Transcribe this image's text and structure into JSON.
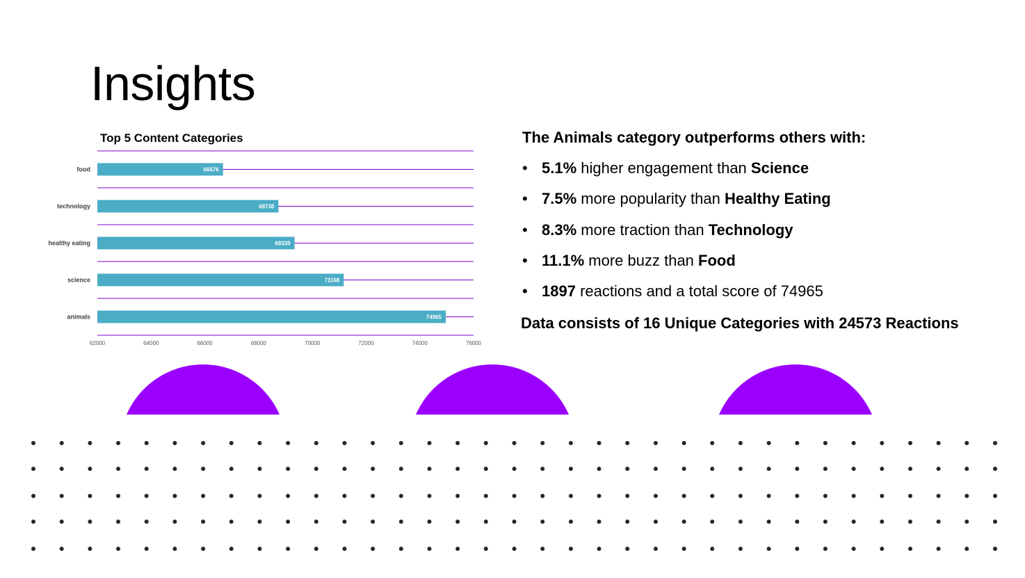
{
  "slide": {
    "title": "Insights"
  },
  "colors": {
    "bar": "#4bacc6",
    "gridline": "#7f00c8",
    "accent": "#9b00ff",
    "dots": "#262626"
  },
  "chart_data": {
    "type": "bar",
    "orientation": "horizontal",
    "title": "Top 5 Content Categories",
    "xlabel": "",
    "ylabel": "",
    "categories": [
      "food",
      "technology",
      "healthy eating",
      "science",
      "animals"
    ],
    "values": [
      66676,
      68738,
      69339,
      71168,
      74965
    ],
    "xlim": [
      62000,
      76000
    ],
    "x_ticks": [
      "62000",
      "64000",
      "66000",
      "68000",
      "70000",
      "72000",
      "74000",
      "76000"
    ],
    "data_labels": true,
    "grid": true,
    "legend": "none"
  },
  "insights": {
    "heading": "The Animals category outperforms others with:",
    "bullets": [
      {
        "value": "5.1%",
        "text": " higher engagement than ",
        "category": "Science"
      },
      {
        "value": "7.5%",
        "text": " more popularity than ",
        "category": "Healthy Eating"
      },
      {
        "value": "8.3%",
        "text": " more traction than ",
        "category": "Technology"
      },
      {
        "value": "11.1%",
        "text": " more buzz than ",
        "category": "Food"
      },
      {
        "value": "1897",
        "text": " reactions and a total score of 74965",
        "category": ""
      }
    ],
    "summary": "Data consists of 16 Unique Categories with 24573 Reactions"
  }
}
